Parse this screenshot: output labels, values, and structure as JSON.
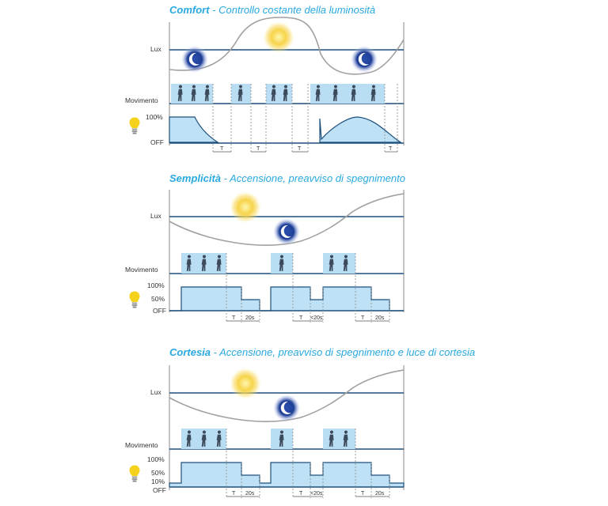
{
  "panels": [
    {
      "title_bold": "Comfort",
      "title_rest": "Controllo costante della luminosità",
      "lux_label": "Lux",
      "movement_label": "Movimento",
      "levels": [
        "100%",
        "OFF"
      ],
      "timers": [
        "T",
        "T",
        "T",
        "T"
      ]
    },
    {
      "title_bold": "Semplicità",
      "title_rest": "Accensione, preavviso di spegnimento",
      "lux_label": "Lux",
      "movement_label": "Movimento",
      "levels": [
        "100%",
        "50%",
        "OFF"
      ],
      "timers": [
        "T",
        "20s",
        "T",
        "<20s",
        "T",
        "20s"
      ]
    },
    {
      "title_bold": "Cortesia",
      "title_rest": "Accensione, preavviso di spegnimento e luce di cortesia",
      "lux_label": "Lux",
      "movement_label": "Movimento",
      "levels": [
        "100%",
        "50%",
        "10%",
        "OFF"
      ],
      "timers": [
        "T",
        "20s",
        "T",
        "<20s",
        "T",
        "20s"
      ]
    }
  ],
  "colors": {
    "title": "#29a9e0",
    "axis": "#1d4f7c",
    "presence_fill": "#b9def4",
    "sun": "#f7d44a",
    "moon": "#1f3f95",
    "bulb": "#f5d21b"
  },
  "icons": [
    "sun-icon",
    "moon-icon",
    "walking-person-icon",
    "light-bulb-icon"
  ]
}
